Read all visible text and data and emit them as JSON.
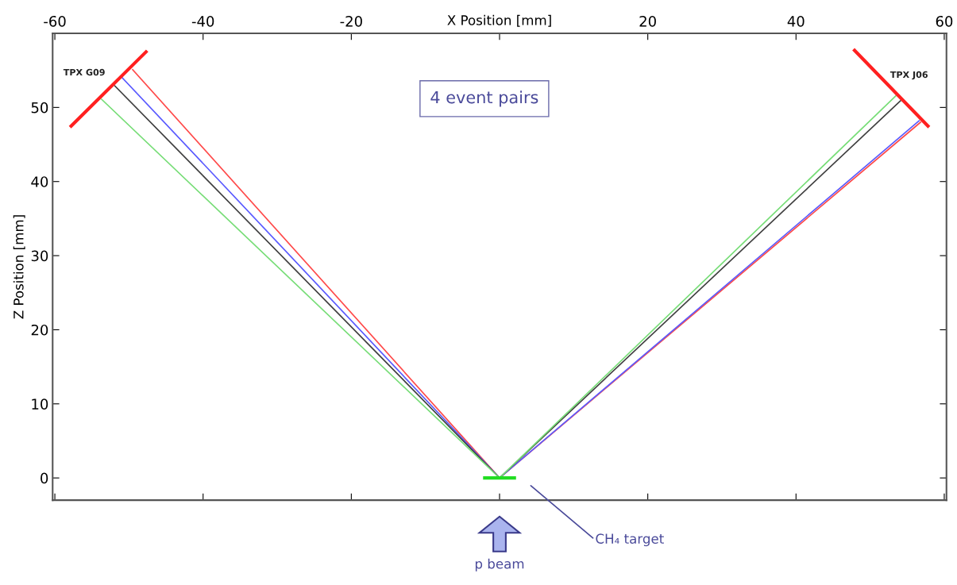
{
  "chart_data": {
    "type": "line",
    "xlabel": "X Position [mm]",
    "ylabel": "Z Position [mm]",
    "xlim": [
      -60.3,
      60.3
    ],
    "ylim": [
      -3,
      60
    ],
    "xticks": [
      -60,
      -40,
      -20,
      {
        "value": 0,
        "label": null
      },
      20,
      40,
      60
    ],
    "yticks": [
      0,
      10,
      20,
      30,
      40,
      50
    ],
    "grid": false,
    "legend": false,
    "marker": "none",
    "line_style": "solid",
    "series": [
      {
        "color": "#ff4a4a",
        "x": [
          -49.5,
          0,
          56.8
        ],
        "values": [
          55.1,
          0,
          48.0
        ]
      },
      {
        "color": "#5a5aff",
        "x": [
          -50.9,
          0,
          56.6
        ],
        "values": [
          54.0,
          0,
          48.2
        ]
      },
      {
        "color": "#404040",
        "x": [
          -51.9,
          0,
          54.1
        ],
        "values": [
          52.9,
          0,
          50.9
        ]
      },
      {
        "color": "#77dd77",
        "x": [
          -53.7,
          0,
          53.5
        ],
        "values": [
          51.1,
          0,
          51.6
        ]
      },
      {
        "color": "#ff2020",
        "x": [
          -57.8,
          -47.7
        ],
        "values": [
          47.5,
          57.5
        ]
      },
      {
        "color": "#ff2020",
        "x": [
          47.9,
          57.8
        ],
        "values": [
          57.7,
          47.5
        ]
      },
      {
        "color": "#22dd22",
        "x": [
          -2.0,
          2.0
        ],
        "values": [
          0,
          0
        ]
      }
    ],
    "annotations": [
      "TPX G09",
      "TPX J06",
      "4 event pairs",
      "CH₄ target",
      "p beam"
    ]
  }
}
